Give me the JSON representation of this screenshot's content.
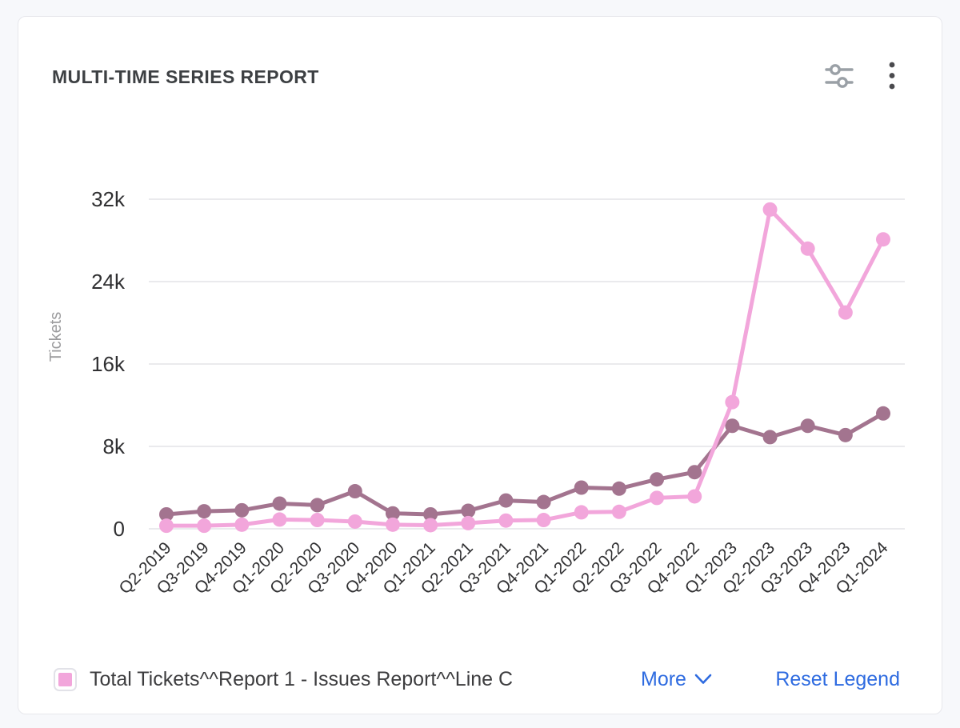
{
  "header": {
    "title": "MULTI-TIME SERIES REPORT",
    "icon_colors": {
      "sliders": "#9aa0a6",
      "kebab": "#4a4a4e"
    }
  },
  "legend": {
    "items": [
      {
        "label": "Total Tickets^^Report 1 - Issues Report^^Line C",
        "swatch_color": "#F2A6DB",
        "checked": true
      }
    ],
    "more_label": "More",
    "reset_label": "Reset Legend",
    "link_color": "#2e6be0"
  },
  "chart_data": {
    "type": "line",
    "title": "",
    "xlabel": "",
    "ylabel": "Tickets",
    "grid": true,
    "legend_position": "bottom",
    "ylim": [
      0,
      32000
    ],
    "y_ticks": {
      "values": [
        0,
        8000,
        16000,
        24000,
        32000
      ],
      "labels": [
        "0",
        "8k",
        "16k",
        "24k",
        "32k"
      ]
    },
    "categories": [
      "Q2-2019",
      "Q3-2019",
      "Q4-2019",
      "Q1-2020",
      "Q2-2020",
      "Q3-2020",
      "Q4-2020",
      "Q1-2021",
      "Q2-2021",
      "Q3-2021",
      "Q4-2021",
      "Q1-2022",
      "Q2-2022",
      "Q3-2022",
      "Q4-2022",
      "Q1-2023",
      "Q2-2023",
      "Q3-2023",
      "Q4-2023",
      "Q1-2024"
    ],
    "series": [
      {
        "name": "",
        "color": "#A3748F",
        "values": [
          1400,
          1700,
          1800,
          2450,
          2300,
          3650,
          1500,
          1400,
          1750,
          2750,
          2600,
          4000,
          3900,
          4800,
          5500,
          10000,
          8900,
          10000,
          9100,
          11200
        ]
      },
      {
        "name": "Total Tickets^^Report 1 - Issues Report^^Line C",
        "color": "#F2A6DB",
        "values": [
          300,
          300,
          400,
          900,
          850,
          700,
          400,
          350,
          550,
          800,
          850,
          1600,
          1650,
          3000,
          3150,
          12300,
          31000,
          27200,
          21000,
          28100
        ]
      }
    ],
    "axis_text_color": "#303032",
    "axis_title_color": "#9b9b9d",
    "grid_color": "#e3e3e7"
  }
}
